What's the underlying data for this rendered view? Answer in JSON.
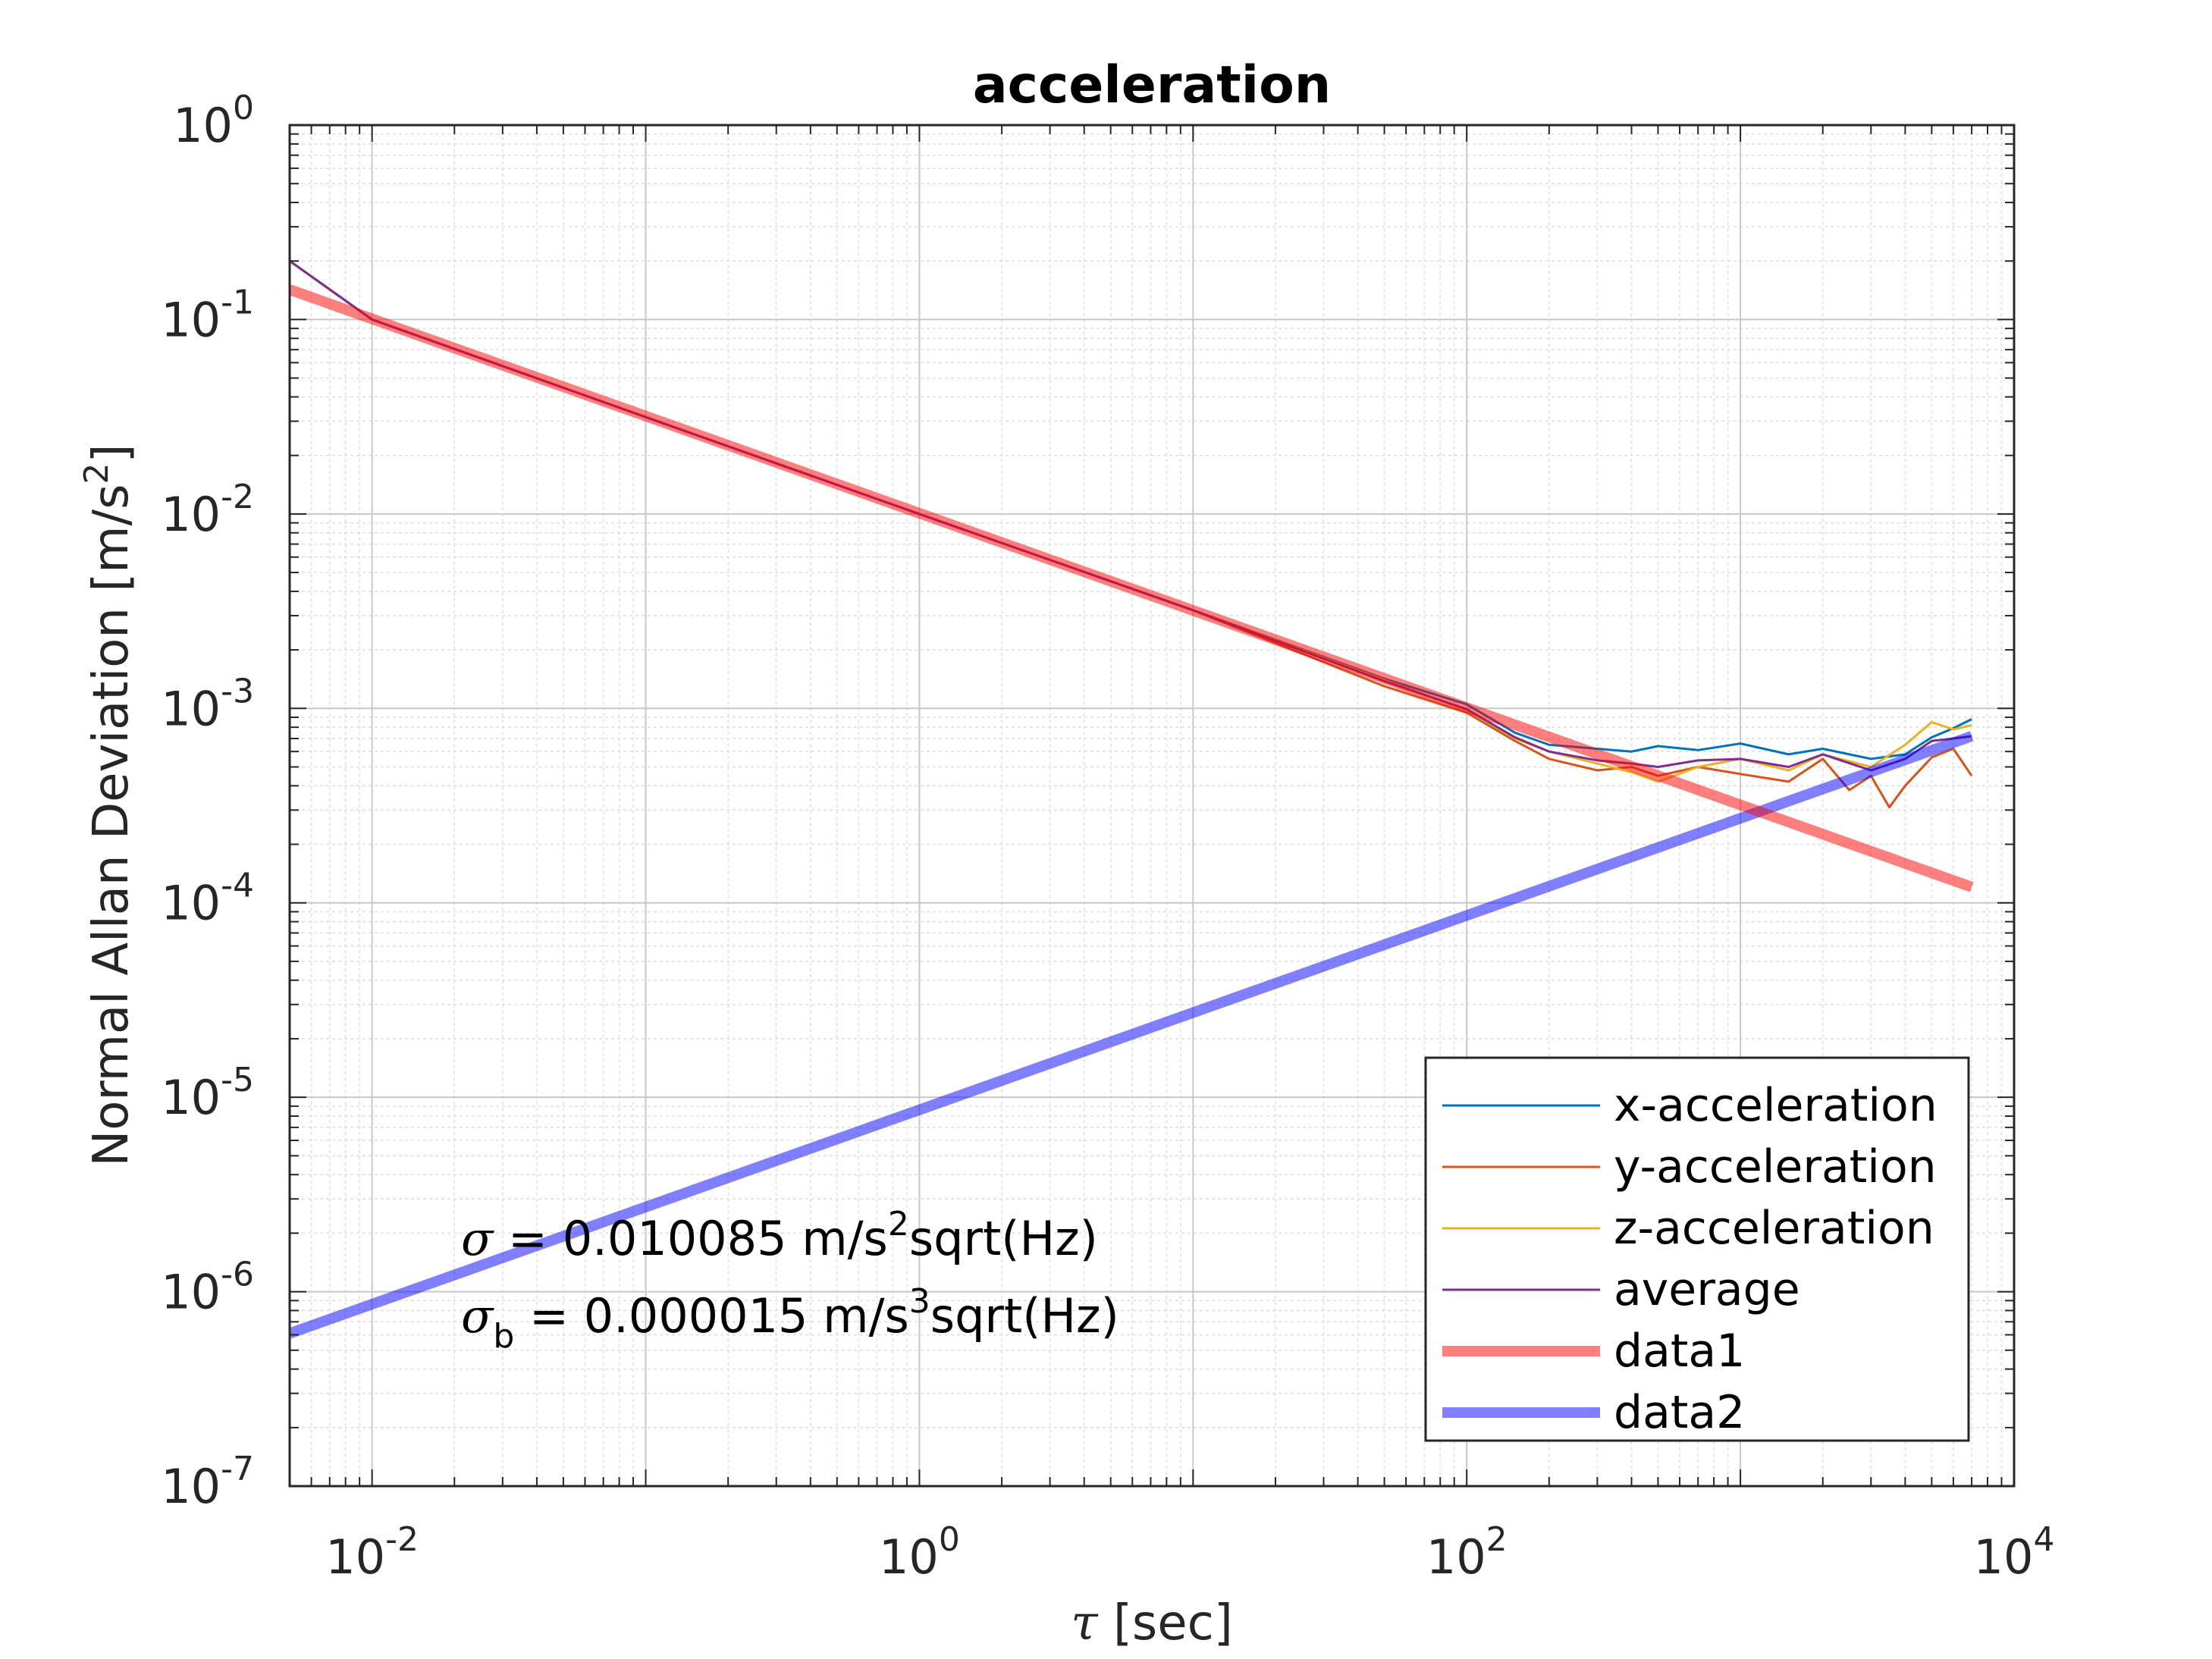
{
  "chart_data": {
    "type": "line",
    "title": "acceleration",
    "xlabel_symbol": "τ",
    "xlabel_unit": "[sec]",
    "ylabel": "Normal Allan Deviation [m/s",
    "ylabel_sup": "2",
    "ylabel_end": "]",
    "x_scale": "log",
    "y_scale": "log",
    "xlim": [
      0.005,
      10000
    ],
    "ylim": [
      1e-07,
      1
    ],
    "grid": true,
    "legend_position": "bottom-right",
    "x_ticks": [
      {
        "value": 0.01,
        "base": "10",
        "exp": "-2"
      },
      {
        "value": 1,
        "base": "10",
        "exp": "0"
      },
      {
        "value": 100,
        "base": "10",
        "exp": "2"
      },
      {
        "value": 10000,
        "base": "10",
        "exp": "4"
      }
    ],
    "y_ticks": [
      {
        "value": 1,
        "base": "10",
        "exp": "0"
      },
      {
        "value": 0.1,
        "base": "10",
        "exp": "-1"
      },
      {
        "value": 0.01,
        "base": "10",
        "exp": "-2"
      },
      {
        "value": 0.001,
        "base": "10",
        "exp": "-3"
      },
      {
        "value": 0.0001,
        "base": "10",
        "exp": "-4"
      },
      {
        "value": 1e-05,
        "base": "10",
        "exp": "-5"
      },
      {
        "value": 1e-06,
        "base": "10",
        "exp": "-6"
      },
      {
        "value": 1e-07,
        "base": "10",
        "exp": "-7"
      }
    ],
    "series": [
      {
        "name": "x-acceleration",
        "color": "#0072BD",
        "x": [
          0.005,
          0.01,
          0.1,
          1,
          10,
          50,
          100,
          150,
          200,
          300,
          400,
          500,
          700,
          1000,
          1500,
          2000,
          3000,
          4000,
          5000,
          6000,
          7000
        ],
        "y": [
          0.2,
          0.1,
          0.0315,
          0.01,
          0.0032,
          0.00142,
          0.00105,
          0.00075,
          0.00065,
          0.00062,
          0.0006,
          0.00064,
          0.00061,
          0.00066,
          0.00058,
          0.00062,
          0.00055,
          0.00058,
          0.00071,
          0.00079,
          0.00088
        ]
      },
      {
        "name": "y-acceleration",
        "color": "#D95319",
        "x": [
          0.005,
          0.01,
          0.1,
          1,
          10,
          50,
          100,
          150,
          200,
          300,
          400,
          500,
          700,
          1000,
          1500,
          2000,
          2500,
          3000,
          3500,
          4000,
          5000,
          6000,
          7000
        ],
        "y": [
          0.2,
          0.1,
          0.0315,
          0.01,
          0.0032,
          0.0013,
          0.00095,
          0.00068,
          0.00055,
          0.00048,
          0.0005,
          0.00045,
          0.0005,
          0.00046,
          0.00042,
          0.00055,
          0.00038,
          0.00045,
          0.00031,
          0.0004,
          0.00056,
          0.00062,
          0.00045
        ]
      },
      {
        "name": "z-acceleration",
        "color": "#EDB120",
        "x": [
          0.005,
          0.01,
          0.1,
          1,
          10,
          50,
          100,
          150,
          200,
          300,
          400,
          500,
          700,
          1000,
          1500,
          2000,
          3000,
          4000,
          5000,
          6000,
          7000
        ],
        "y": [
          0.2,
          0.1,
          0.0315,
          0.01,
          0.0032,
          0.0014,
          0.00098,
          0.0007,
          0.0006,
          0.00052,
          0.00047,
          0.00042,
          0.0005,
          0.00055,
          0.00048,
          0.00058,
          0.0005,
          0.00065,
          0.00085,
          0.00078,
          0.00082
        ]
      },
      {
        "name": "average",
        "color": "#7E2F8E",
        "x": [
          0.005,
          0.01,
          0.1,
          1,
          10,
          50,
          100,
          150,
          200,
          300,
          400,
          500,
          700,
          1000,
          1500,
          2000,
          3000,
          4000,
          5000,
          6000,
          7000
        ],
        "y": [
          0.2,
          0.1,
          0.0315,
          0.01,
          0.0032,
          0.00138,
          0.00099,
          0.00071,
          0.0006,
          0.00054,
          0.00052,
          0.0005,
          0.00054,
          0.00055,
          0.0005,
          0.00058,
          0.00048,
          0.00055,
          0.00068,
          0.0007,
          0.00072
        ]
      },
      {
        "name": "data1",
        "color": "#FF0000",
        "opacity": 0.5,
        "width": "thick",
        "x": [
          0.005,
          7000
        ],
        "y": [
          0.1426,
          0.0001206
        ]
      },
      {
        "name": "data2",
        "color": "#0000FF",
        "opacity": 0.5,
        "width": "thick",
        "x": [
          0.005,
          7000
        ],
        "y": [
          6.1e-07,
          0.00072
        ]
      }
    ],
    "annotations": [
      {
        "symbol": "σ",
        "sub": "",
        "text": " = 0.010085 m/s",
        "sup": "2",
        "tail": "sqrt(Hz)"
      },
      {
        "symbol": "σ",
        "sub": "b",
        "text": " = 0.000015 m/s",
        "sup": "3",
        "tail": "sqrt(Hz)"
      }
    ]
  }
}
